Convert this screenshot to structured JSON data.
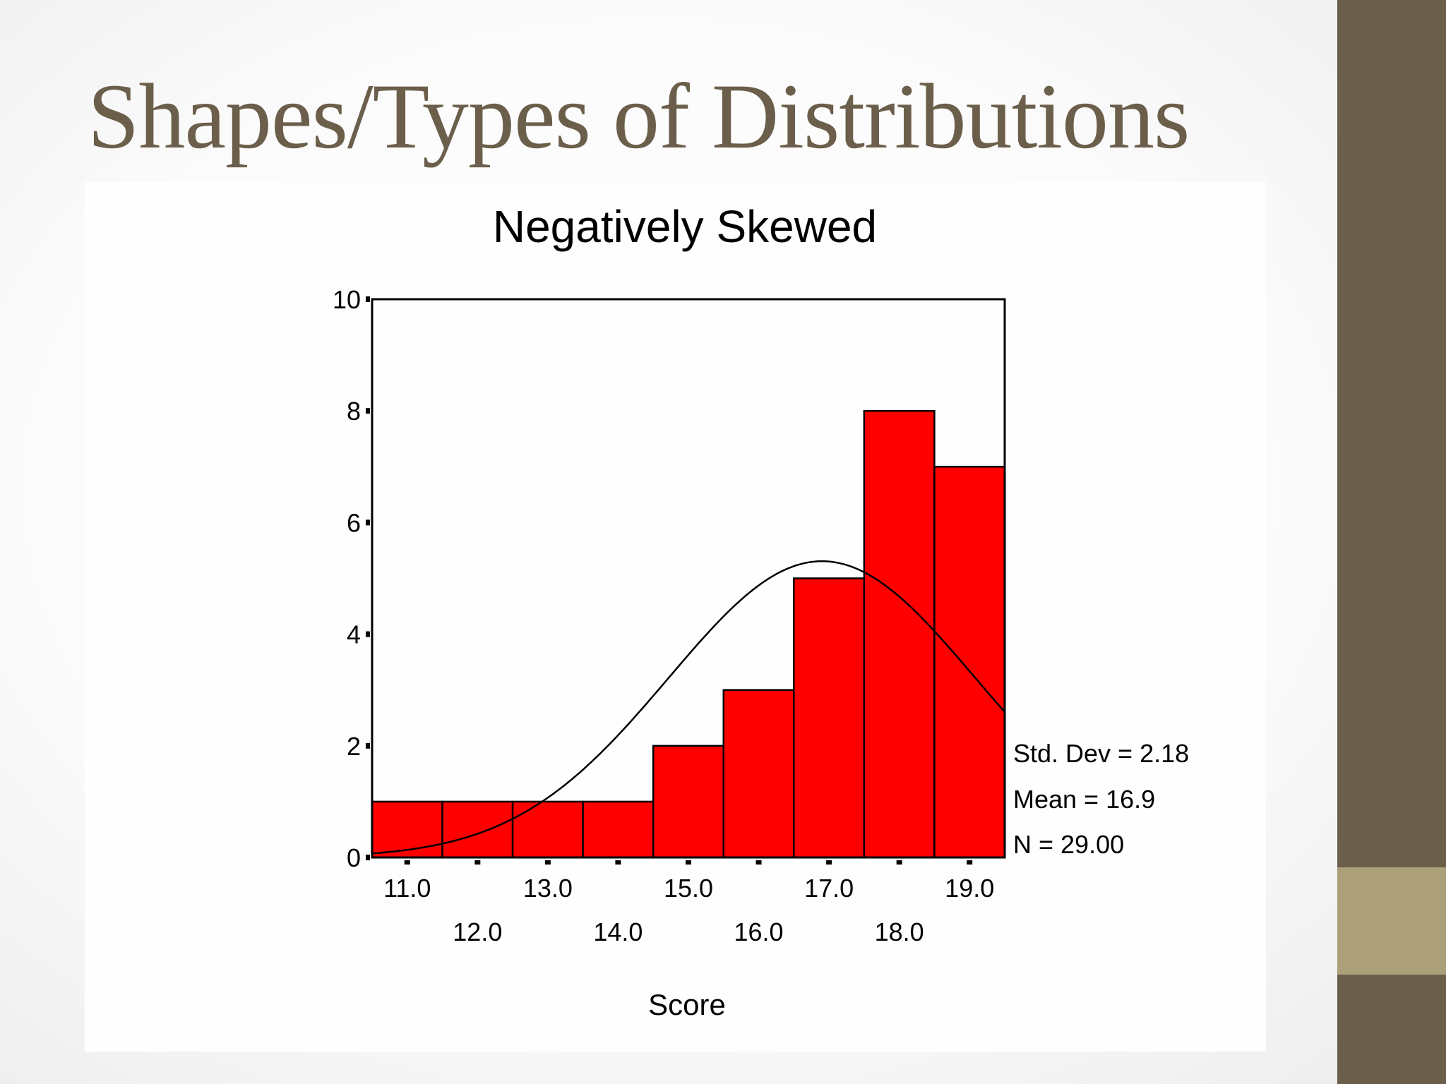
{
  "slide": {
    "title": "Shapes/Types of Distributions"
  },
  "colors": {
    "side_bar": "#6b5f4b",
    "side_accent": "#aba07a",
    "title": "#6b5f4b",
    "bar_fill": "#ff0000"
  },
  "chart_data": {
    "type": "bar",
    "title": "Negatively Skewed",
    "xlabel": "Score",
    "ylabel": "",
    "ylim": [
      0,
      10
    ],
    "yticks": [
      0,
      2,
      4,
      6,
      8,
      10
    ],
    "categories": [
      "11.0",
      "12.0",
      "13.0",
      "14.0",
      "15.0",
      "16.0",
      "17.0",
      "18.0",
      "19.0"
    ],
    "values": [
      1,
      1,
      1,
      1,
      2,
      3,
      5,
      8,
      7
    ],
    "normal_curve": true,
    "grid": false,
    "stats": {
      "std_dev": "Std. Dev = 2.18",
      "mean": "Mean = 16.9",
      "n": "N = 29.00"
    }
  }
}
